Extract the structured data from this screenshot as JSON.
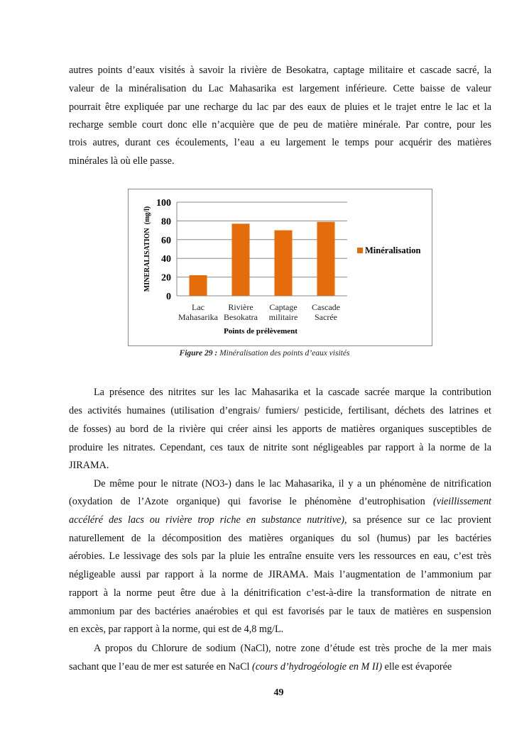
{
  "paragraphs": [
    {
      "indent": false,
      "lines": [
        [
          {
            "t": "autres points d’eaux visités à savoir la rivière de Besokatra, captage militaire et cascade sacré, la"
          }
        ],
        [
          {
            "t": "valeur de la minéralisation du Lac Mahasarika est largement inférieure. Cette baisse de valeur"
          }
        ],
        [
          {
            "t": "pourrait être expliquée par une recharge du lac par des eaux de pluies et le trajet entre le lac et la"
          }
        ],
        [
          {
            "t": "recharge semble court donc elle n’acquière que de peu de matière minérale. Par contre, pour les"
          }
        ],
        [
          {
            "t": "trois autres, durant ces écoulements, l’eau a eu largement le temps pour acquérir des matières"
          }
        ],
        [
          {
            "t": "minérales  là où elle passe."
          }
        ]
      ]
    },
    {
      "indent": true,
      "lines": [
        [
          {
            "t": "La présence des nitrites sur les lac Mahasarika et la cascade sacrée marque la contribution"
          }
        ],
        [
          {
            "t": "des activités humaines (utilisation d’engrais/ fumiers/ pesticide, fertilisant, déchets des latrines et"
          }
        ],
        [
          {
            "t": "de fosses) au bord de la rivière qui créer ainsi les apports de matières organiques susceptibles de"
          }
        ],
        [
          {
            "t": "produire les nitrates. Cependant, ces taux de nitrite sont négligeables par rapport à la norme de la"
          }
        ],
        [
          {
            "t": "JIRAMA."
          }
        ]
      ]
    },
    {
      "indent": true,
      "lines": [
        [
          {
            "t": "De même pour le nitrate (NO3-) dans le lac Mahasarika, il y a un phénomène de nitrification"
          }
        ],
        [
          {
            "t": "(oxydation de l’Azote organique) qui favorise le phénomène d’eutrophisation "
          },
          {
            "t": "(vieillissement",
            "i": true
          }
        ],
        [
          {
            "t": "accéléré des lacs ou rivière trop riche en substance nutritive)",
            "i": true
          },
          {
            "t": ", sa présence sur ce lac provient"
          }
        ],
        [
          {
            "t": "naturellement de la décomposition des matières organiques du sol (humus) par les bactéries"
          }
        ],
        [
          {
            "t": "aérobies. Le lessivage des sols par la pluie les entraîne ensuite vers les ressources en eau, c’est très"
          }
        ],
        [
          {
            "t": "négligeable aussi par rapport à la norme de JIRAMA. Mais l’augmentation de l’ammonium par"
          }
        ],
        [
          {
            "t": "rapport à la norme peut être due à la dénitrification c’est-à-dire la transformation de nitrate en"
          }
        ],
        [
          {
            "t": "ammonium par des bactéries anaérobies et qui est favorisés par le taux de matières en suspension"
          }
        ],
        [
          {
            "t": "en excès, par rapport à la norme, qui est de 4,8 mg/L."
          }
        ]
      ]
    },
    {
      "indent": true,
      "lines": [
        [
          {
            "t": "A propos du Chlorure de sodium (NaCl), notre zone d’étude est très proche de la mer mais"
          }
        ],
        [
          {
            "t": "sachant que l’eau de mer est saturée en NaCl "
          },
          {
            "t": "(cours d’hydrogéologie en M II)",
            "i": true
          },
          {
            "t": " elle est évaporée"
          }
        ]
      ]
    }
  ],
  "figure": {
    "caption_label": "Figure 29 :",
    "caption_text": " Minéralisation des points d’eaux visités"
  },
  "chart_data": {
    "type": "bar",
    "categories": [
      [
        "Lac",
        "Mahasarika"
      ],
      [
        "Rivière",
        "Besokatra"
      ],
      [
        "Captage",
        "militaire"
      ],
      [
        "Cascade",
        "Sacrée"
      ]
    ],
    "series": [
      {
        "name": "Minéralisation",
        "values": [
          22,
          77,
          70,
          79
        ],
        "color": "#E46C0A"
      }
    ],
    "xlabel": "Points de prélèvement",
    "ylabel": "MINERALISATION  (mg/l)",
    "ylim": [
      0,
      100
    ],
    "yticks": [
      0,
      20,
      40,
      60,
      80,
      100
    ],
    "grid": true,
    "legend": "right"
  },
  "page_number": "49"
}
